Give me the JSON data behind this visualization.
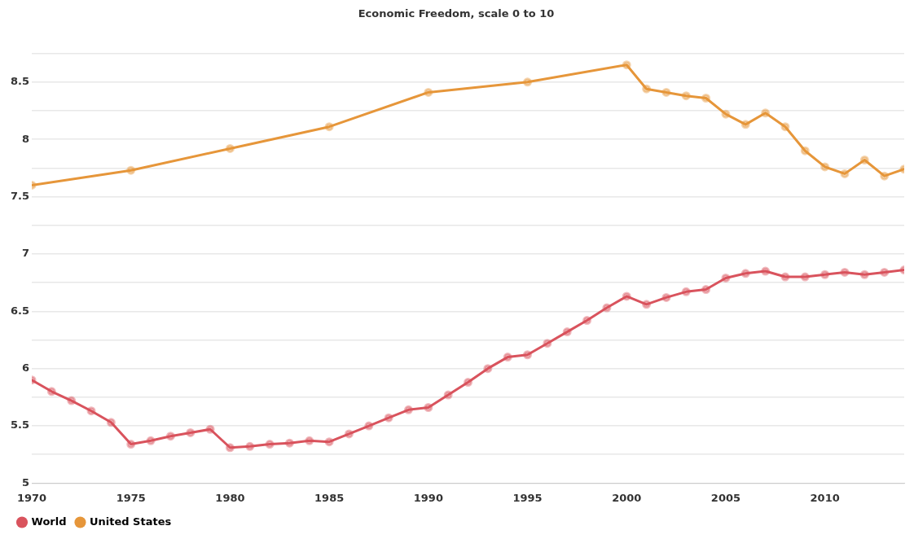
{
  "chart_data": {
    "type": "line",
    "title": "Economic Freedom, scale 0 to 10",
    "xlim": [
      1970,
      2014
    ],
    "xticks": [
      1970,
      1975,
      1980,
      1985,
      1990,
      1995,
      2000,
      2005,
      2010
    ],
    "ylim": [
      5,
      8.75
    ],
    "yticks": [
      5,
      {
        "value": 5.25,
        "label": null
      },
      5.5,
      {
        "value": 5.75,
        "label": null
      },
      6,
      {
        "value": 6.25,
        "label": null
      },
      6.5,
      {
        "value": 6.75,
        "label": null
      },
      7,
      {
        "value": 7.25,
        "label": null
      },
      7.5,
      {
        "value": 7.75,
        "label": null
      },
      8,
      {
        "value": 8.25,
        "label": null
      },
      8.5,
      {
        "value": 8.75,
        "label": null
      }
    ],
    "grid": "y",
    "legend": "bottom left",
    "marker": "circle",
    "line_style": "solid",
    "series": [
      {
        "name": "World",
        "color": "#d9535d",
        "x": [
          1970,
          1971,
          1972,
          1973,
          1974,
          1975,
          1976,
          1977,
          1978,
          1979,
          1980,
          1981,
          1982,
          1983,
          1984,
          1985,
          1986,
          1987,
          1988,
          1989,
          1990,
          1991,
          1992,
          1993,
          1994,
          1995,
          1996,
          1997,
          1998,
          1999,
          2000,
          2001,
          2002,
          2003,
          2004,
          2005,
          2006,
          2007,
          2008,
          2009,
          2010,
          2011,
          2012,
          2013,
          2014
        ],
        "values": [
          5.9,
          5.8,
          5.72,
          5.63,
          5.53,
          5.34,
          5.37,
          5.41,
          5.44,
          5.47,
          5.31,
          5.32,
          5.34,
          5.35,
          5.37,
          5.36,
          5.43,
          5.5,
          5.57,
          5.64,
          5.66,
          5.77,
          5.88,
          6.0,
          6.1,
          6.12,
          6.22,
          6.32,
          6.42,
          6.53,
          6.63,
          6.56,
          6.62,
          6.67,
          6.69,
          6.79,
          6.83,
          6.85,
          6.8,
          6.8,
          6.82,
          6.84,
          6.82,
          6.84,
          6.86
        ]
      },
      {
        "name": "United States",
        "color": "#e6963a",
        "x": [
          1970,
          1975,
          1980,
          1985,
          1990,
          1995,
          2000,
          2001,
          2002,
          2003,
          2004,
          2005,
          2006,
          2007,
          2008,
          2009,
          2010,
          2011,
          2012,
          2013,
          2014
        ],
        "values": [
          7.6,
          7.73,
          7.92,
          8.11,
          8.41,
          8.5,
          8.65,
          8.44,
          8.41,
          8.38,
          8.36,
          8.22,
          8.13,
          8.23,
          8.11,
          7.9,
          7.76,
          7.7,
          7.82,
          7.68,
          7.74
        ]
      }
    ]
  }
}
